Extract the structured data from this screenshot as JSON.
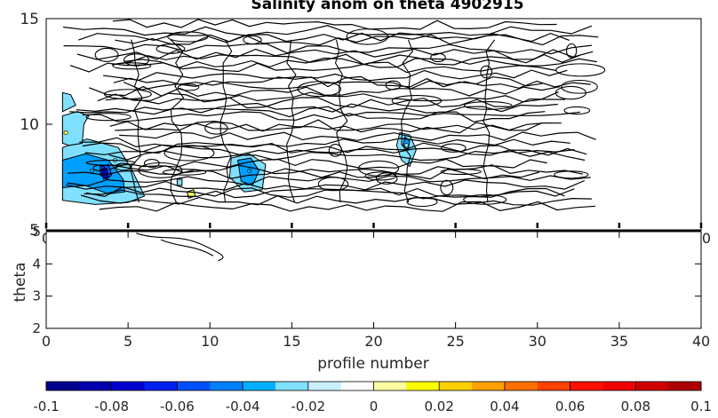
{
  "chart_data": {
    "type": "contour",
    "title": "Salinity anom on theta    4902915",
    "xlabel": "profile number",
    "ylabel": "theta",
    "upper_panel": {
      "xlim": [
        0,
        40
      ],
      "ylim": [
        5,
        15
      ],
      "yticks": [
        "5",
        "10",
        "15"
      ],
      "partial_xtick_labels": [
        "0",
        "0"
      ],
      "data_extent_profiles": [
        1,
        34
      ]
    },
    "lower_panel": {
      "xlim": [
        0,
        40
      ],
      "ylim": [
        2,
        5
      ],
      "xticks": [
        "0",
        "5",
        "10",
        "15",
        "20",
        "25",
        "30",
        "35",
        "40"
      ],
      "yticks": [
        "2",
        "3",
        "4",
        "5"
      ]
    },
    "colorbar": {
      "ticks": [
        "-0.1",
        "-0.08",
        "-0.06",
        "-0.04",
        "-0.02",
        "0",
        "0.02",
        "0.04",
        "0.06",
        "0.08",
        "0.1"
      ],
      "range": [
        -0.1,
        0.1
      ],
      "colors": [
        "#00008f",
        "#0000af",
        "#0000cf",
        "#0020ef",
        "#0050ff",
        "#0080ff",
        "#00b0ff",
        "#80e0ff",
        "#c8f0ff",
        "#ffffff",
        "#ffffa0",
        "#ffff00",
        "#ffd000",
        "#ffa000",
        "#ff7000",
        "#ff4000",
        "#ff1000",
        "#ef0000",
        "#cf0000",
        "#af0000"
      ]
    },
    "anomaly_regions": [
      {
        "level": "-0.08",
        "color": "#0000cf",
        "x": 3.5,
        "y": 7.7
      },
      {
        "level": "-0.04",
        "color": "#00a0ff",
        "x": 2.8,
        "y": 7.8
      },
      {
        "level": "-0.03",
        "color": "#00a0ff",
        "x": 12.4,
        "y": 7.8
      },
      {
        "level": "-0.02",
        "color": "#80e0ff",
        "x": 4.2,
        "y": 8.3
      },
      {
        "level": "-0.02",
        "color": "#80e0ff",
        "x": 22.0,
        "y": 9.0
      },
      {
        "level": "0.02",
        "color": "#ffff60",
        "x": 1.2,
        "y": 9.6
      }
    ]
  }
}
